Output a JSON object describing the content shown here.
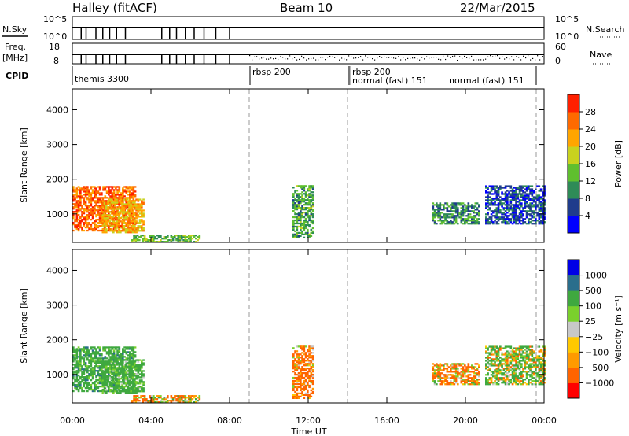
{
  "header": {
    "station": "Halley (fitACF)",
    "beam": "Beam 10",
    "date": "22/Mar/2015"
  },
  "top_panels": {
    "nsky_label": "N.Sky",
    "nsky_ticks": [
      "10^5",
      "10^0"
    ],
    "nsearch_label": "N.Search",
    "nsearch_ticks": [
      "10^5",
      "10^0"
    ],
    "freq_label": "Freq.",
    "freq_unit": "[MHz]",
    "freq_ticks": [
      "18",
      "8"
    ],
    "nave_label": "Nave",
    "nave_ticks": [
      "60",
      "0"
    ],
    "cpid_label": "CPID"
  },
  "cpid_segments": [
    {
      "name": "themis 3300",
      "start_hour": 0.0
    },
    {
      "name": "rbsp 200",
      "start_hour": 9.0
    },
    {
      "name": "rbsp 200",
      "start_hour": 14.0
    },
    {
      "name": "normal (fast) 151",
      "start_hour": 14.0
    },
    {
      "name": "normal (fast) 151",
      "start_hour": 23.6
    }
  ],
  "colors": {
    "power": [
      "#0000ff",
      "#1f3c8c",
      "#2e8b57",
      "#5fbf2e",
      "#c8d21e",
      "#ffa500",
      "#ff6a00",
      "#ff2000"
    ],
    "velocity": [
      "#ff0000",
      "#ff6400",
      "#ff9a00",
      "#ffc800",
      "#c8c8c8",
      "#7ad02c",
      "#3fa83f",
      "#2a6e8c",
      "#0000e6"
    ],
    "ground_scatter": "#808080"
  },
  "axes": {
    "ylabel": "Slant Range [km]",
    "xlabel": "Time UT",
    "xticks": [
      "00:00",
      "04:00",
      "08:00",
      "12:00",
      "16:00",
      "20:00",
      "00:00"
    ],
    "yticks": [
      "1000",
      "2000",
      "3000",
      "4000"
    ]
  },
  "colorbars": {
    "power": {
      "label": "Power [dB]",
      "ticks": [
        "4",
        "8",
        "12",
        "16",
        "20",
        "24",
        "28"
      ]
    },
    "velocity": {
      "label": "Velocity [m s⁻¹]",
      "ticks": [
        "1000",
        "500",
        "100",
        "25",
        "−25",
        "−100",
        "−500",
        "−1000"
      ]
    }
  },
  "chart_data": {
    "type": "heatmap",
    "x_range_hours": [
      0,
      24
    ],
    "y_range_km": [
      180,
      4600
    ],
    "power_range_db": [
      0,
      32
    ],
    "velocity_range_ms": [
      -1200,
      1200
    ],
    "grid": false,
    "echo_regions": [
      {
        "t_start": 0.0,
        "t_end": 3.2,
        "r_min": 500,
        "r_max": 1800,
        "power_db": 26,
        "velocity_ms": 300
      },
      {
        "t_start": 1.5,
        "t_end": 3.6,
        "r_min": 450,
        "r_max": 1400,
        "power_db": 22,
        "velocity_ms": 250
      },
      {
        "t_start": 3.0,
        "t_end": 6.5,
        "r_min": 180,
        "r_max": 400,
        "power_db": 14,
        "velocity_ms": -100
      },
      {
        "t_start": 11.2,
        "t_end": 12.2,
        "r_min": 300,
        "r_max": 1800,
        "power_db": 12,
        "velocity_ms": -200
      },
      {
        "t_start": 18.3,
        "t_end": 20.7,
        "r_min": 700,
        "r_max": 1300,
        "power_db": 10,
        "velocity_ms": -100
      },
      {
        "t_start": 21.0,
        "t_end": 24.0,
        "r_min": 700,
        "r_max": 1800,
        "power_db": 6,
        "velocity_ms": 100
      }
    ]
  }
}
